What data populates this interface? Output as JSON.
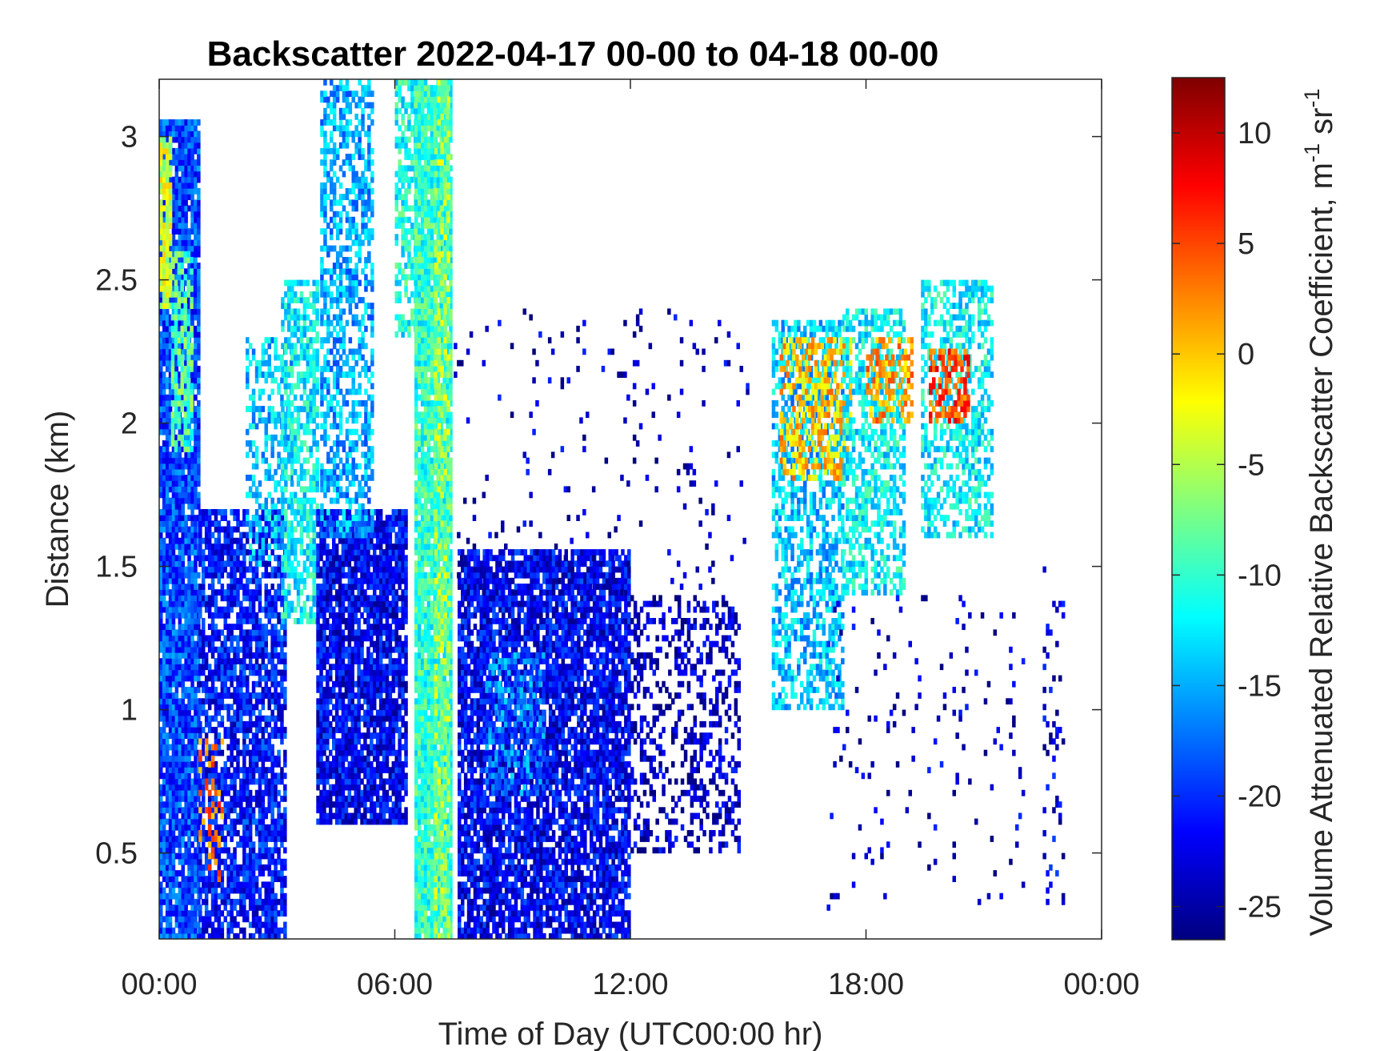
{
  "chart_data": {
    "type": "heatmap",
    "title": "Backscatter 2022-04-17 00-00 to 04-18 00-00",
    "xlabel": "Time of Day (UTC00:00 hr)",
    "ylabel": "Distance (km)",
    "xlim": [
      0,
      24
    ],
    "ylim": [
      0.2,
      3.2
    ],
    "x_ticks": [
      {
        "value": 0,
        "label": "00:00"
      },
      {
        "value": 6,
        "label": "06:00"
      },
      {
        "value": 12,
        "label": "12:00"
      },
      {
        "value": 18,
        "label": "18:00"
      },
      {
        "value": 24,
        "label": "00:00"
      }
    ],
    "y_ticks": [
      {
        "value": 0.5,
        "label": "0.5"
      },
      {
        "value": 1,
        "label": "1"
      },
      {
        "value": 1.5,
        "label": "1.5"
      },
      {
        "value": 2,
        "label": "2"
      },
      {
        "value": 2.5,
        "label": "2.5"
      },
      {
        "value": 3,
        "label": "3"
      }
    ],
    "colorbar": {
      "label": "Volume Attenuated Relative Backscatter Coefficient, m",
      "label_exp1": "-1",
      "label_unit2": " sr",
      "label_exp2": "-1",
      "clim": [
        -26.5,
        12.5
      ],
      "colormap": "jet",
      "ticks": [
        {
          "value": 10,
          "label": "10"
        },
        {
          "value": 5,
          "label": "5"
        },
        {
          "value": 0,
          "label": "0"
        },
        {
          "value": -5,
          "label": "-5"
        },
        {
          "value": -10,
          "label": "-10"
        },
        {
          "value": -15,
          "label": "-15"
        },
        {
          "value": -20,
          "label": "-20"
        },
        {
          "value": -25,
          "label": "-25"
        }
      ]
    },
    "regions": [
      {
        "t": [
          0.0,
          1.0
        ],
        "z": [
          0.2,
          3.05
        ],
        "level": -19,
        "density": 0.92
      },
      {
        "t": [
          0.0,
          0.3
        ],
        "z": [
          2.4,
          3.0
        ],
        "level": -4,
        "density": 0.85
      },
      {
        "t": [
          0.3,
          0.8
        ],
        "z": [
          1.9,
          2.6
        ],
        "level": -9,
        "density": 0.6
      },
      {
        "t": [
          1.0,
          3.2
        ],
        "z": [
          0.2,
          1.7
        ],
        "level": -21,
        "density": 0.75
      },
      {
        "t": [
          1.0,
          1.6
        ],
        "z": [
          0.4,
          0.9
        ],
        "level": 3,
        "density": 0.2
      },
      {
        "t": [
          2.2,
          3.4
        ],
        "z": [
          1.5,
          2.3
        ],
        "level": -14,
        "density": 0.4
      },
      {
        "t": [
          3.1,
          4.0
        ],
        "z": [
          1.3,
          2.5
        ],
        "level": -12,
        "density": 0.65
      },
      {
        "t": [
          4.0,
          6.3
        ],
        "z": [
          0.6,
          1.7
        ],
        "level": -22,
        "density": 0.85
      },
      {
        "t": [
          4.1,
          5.4
        ],
        "z": [
          1.6,
          3.2
        ],
        "level": -15,
        "density": 0.55
      },
      {
        "t": [
          6.0,
          6.7
        ],
        "z": [
          2.3,
          3.2
        ],
        "level": -11,
        "density": 0.6
      },
      {
        "t": [
          6.5,
          7.4
        ],
        "z": [
          0.2,
          3.2
        ],
        "level": -10,
        "density": 0.95
      },
      {
        "t": [
          7.0,
          7.4
        ],
        "z": [
          0.2,
          3.2
        ],
        "level": -6,
        "density": 0.5
      },
      {
        "t": [
          7.6,
          12.0
        ],
        "z": [
          0.2,
          1.55
        ],
        "level": -22,
        "density": 0.82
      },
      {
        "t": [
          8.3,
          9.8
        ],
        "z": [
          0.7,
          1.2
        ],
        "level": -17,
        "density": 0.5
      },
      {
        "t": [
          12.0,
          14.8
        ],
        "z": [
          0.5,
          1.4
        ],
        "level": -24,
        "density": 0.35
      },
      {
        "t": [
          15.6,
          17.4
        ],
        "z": [
          1.0,
          2.35
        ],
        "level": -14,
        "density": 0.55
      },
      {
        "t": [
          15.8,
          17.6
        ],
        "z": [
          1.8,
          2.3
        ],
        "level": 0,
        "density": 0.5
      },
      {
        "t": [
          17.4,
          19.0
        ],
        "z": [
          1.4,
          2.4
        ],
        "level": -12,
        "density": 0.55
      },
      {
        "t": [
          18.0,
          19.2
        ],
        "z": [
          2.0,
          2.3
        ],
        "level": 2,
        "density": 0.45
      },
      {
        "t": [
          19.4,
          21.2
        ],
        "z": [
          1.6,
          2.5
        ],
        "level": -12,
        "density": 0.5
      },
      {
        "t": [
          19.6,
          20.6
        ],
        "z": [
          2.0,
          2.25
        ],
        "level": 5,
        "density": 0.55
      },
      {
        "t": [
          17.0,
          22.0
        ],
        "z": [
          0.3,
          1.4
        ],
        "level": -24,
        "density": 0.04
      },
      {
        "t": [
          7.5,
          15.0
        ],
        "z": [
          1.4,
          2.4
        ],
        "level": -24,
        "density": 0.04
      },
      {
        "t": [
          22.5,
          23.0
        ],
        "z": [
          0.3,
          1.5
        ],
        "level": -23,
        "density": 0.12
      }
    ]
  }
}
